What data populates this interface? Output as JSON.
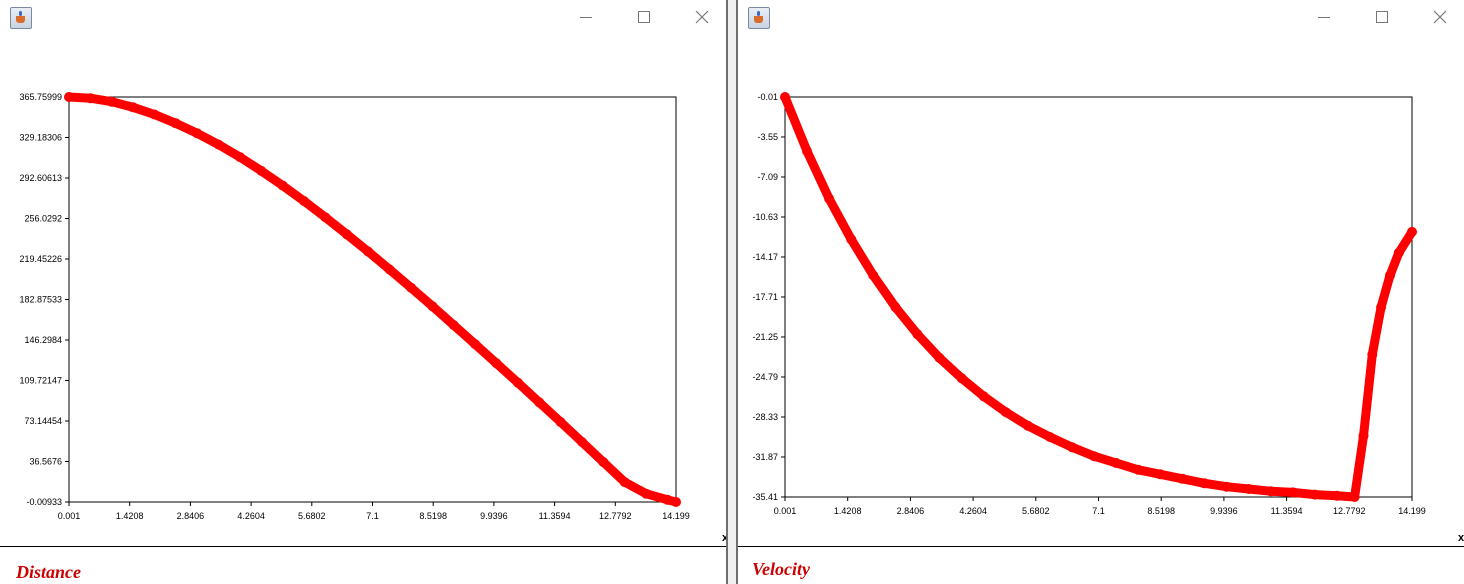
{
  "windows": [
    {
      "id": "left",
      "caption": "Distance",
      "close_glyph": "x",
      "icons": {
        "app": "java-app-icon",
        "minimize": "minimize-icon",
        "maximize": "maximize-icon",
        "close": "close-icon"
      }
    },
    {
      "id": "right",
      "caption": "Velocity",
      "close_glyph": "x",
      "icons": {
        "app": "java-app-icon",
        "minimize": "minimize-icon",
        "maximize": "maximize-icon",
        "close": "close-icon"
      }
    }
  ],
  "colors": {
    "series": "#ff0000",
    "caption": "#cc0000",
    "axis": "#000000"
  },
  "chart_data": [
    {
      "type": "scatter",
      "title": "Distance",
      "xlabel": "",
      "ylabel": "",
      "x_ticks": [
        "0.001",
        "1.4208",
        "2.8406",
        "4.2604",
        "5.6802",
        "7.1",
        "8.5198",
        "9.9396",
        "11.3594",
        "12.7792",
        "14.199"
      ],
      "y_ticks": [
        "365.75999",
        "329.18306",
        "292.60613",
        "256.0292",
        "219.45226",
        "182.87533",
        "146.2984",
        "109.72147",
        "73.14454",
        "36.5676",
        "-0.00933"
      ],
      "xlim": [
        0.001,
        14.199
      ],
      "ylim": [
        -0.00933,
        365.75999
      ],
      "grid": false,
      "legend": "none",
      "series": [
        {
          "color": "#ff0000",
          "x": [
            0.001,
            0.5,
            1.0,
            1.5,
            2.0,
            2.5,
            3.0,
            3.5,
            4.0,
            4.5,
            5.0,
            5.5,
            6.0,
            6.5,
            7.0,
            7.5,
            8.0,
            8.5,
            9.0,
            9.5,
            10.0,
            10.5,
            11.0,
            11.5,
            12.0,
            12.5,
            13.0,
            13.5,
            14.0,
            14.199
          ],
          "y": [
            365.76,
            364.7,
            361.5,
            356.5,
            350.0,
            342.0,
            333.0,
            322.8,
            311.5,
            299.0,
            285.7,
            271.7,
            257.0,
            241.8,
            226.1,
            210.0,
            193.5,
            176.8,
            159.8,
            142.6,
            125.2,
            107.7,
            90.0,
            72.2,
            54.2,
            36.0,
            18.0,
            7.5,
            2.0,
            0.0
          ]
        }
      ]
    },
    {
      "type": "scatter",
      "title": "Velocity",
      "xlabel": "",
      "ylabel": "",
      "x_ticks": [
        "0.001",
        "1.4208",
        "2.8406",
        "4.2604",
        "5.6802",
        "7.1",
        "8.5198",
        "9.9396",
        "11.3594",
        "12.7792",
        "14.199"
      ],
      "y_ticks": [
        "-0.01",
        "-3.55",
        "-7.09",
        "-10.63",
        "-14.17",
        "-17.71",
        "-21.25",
        "-24.79",
        "-28.33",
        "-31.87",
        "-35.41"
      ],
      "xlim": [
        0.001,
        14.199
      ],
      "ylim": [
        -35.41,
        -0.01
      ],
      "grid": false,
      "legend": "none",
      "series": [
        {
          "color": "#ff0000",
          "x": [
            0.001,
            0.5,
            1.0,
            1.5,
            2.0,
            2.5,
            3.0,
            3.5,
            4.0,
            4.5,
            5.0,
            5.5,
            6.0,
            6.5,
            7.0,
            7.5,
            8.0,
            8.5,
            9.0,
            9.5,
            10.0,
            10.5,
            11.0,
            11.5,
            12.0,
            12.5,
            12.9,
            13.1,
            13.3,
            13.5,
            13.7,
            13.9,
            14.199
          ],
          "y": [
            -0.01,
            -4.8,
            -9.0,
            -12.6,
            -15.8,
            -18.6,
            -21.0,
            -23.1,
            -24.9,
            -26.5,
            -27.9,
            -29.1,
            -30.1,
            -31.0,
            -31.8,
            -32.4,
            -33.0,
            -33.4,
            -33.8,
            -34.2,
            -34.5,
            -34.7,
            -34.9,
            -35.0,
            -35.2,
            -35.3,
            -35.41,
            -30.0,
            -22.8,
            -18.6,
            -15.8,
            -13.8,
            -11.95
          ]
        }
      ]
    }
  ]
}
